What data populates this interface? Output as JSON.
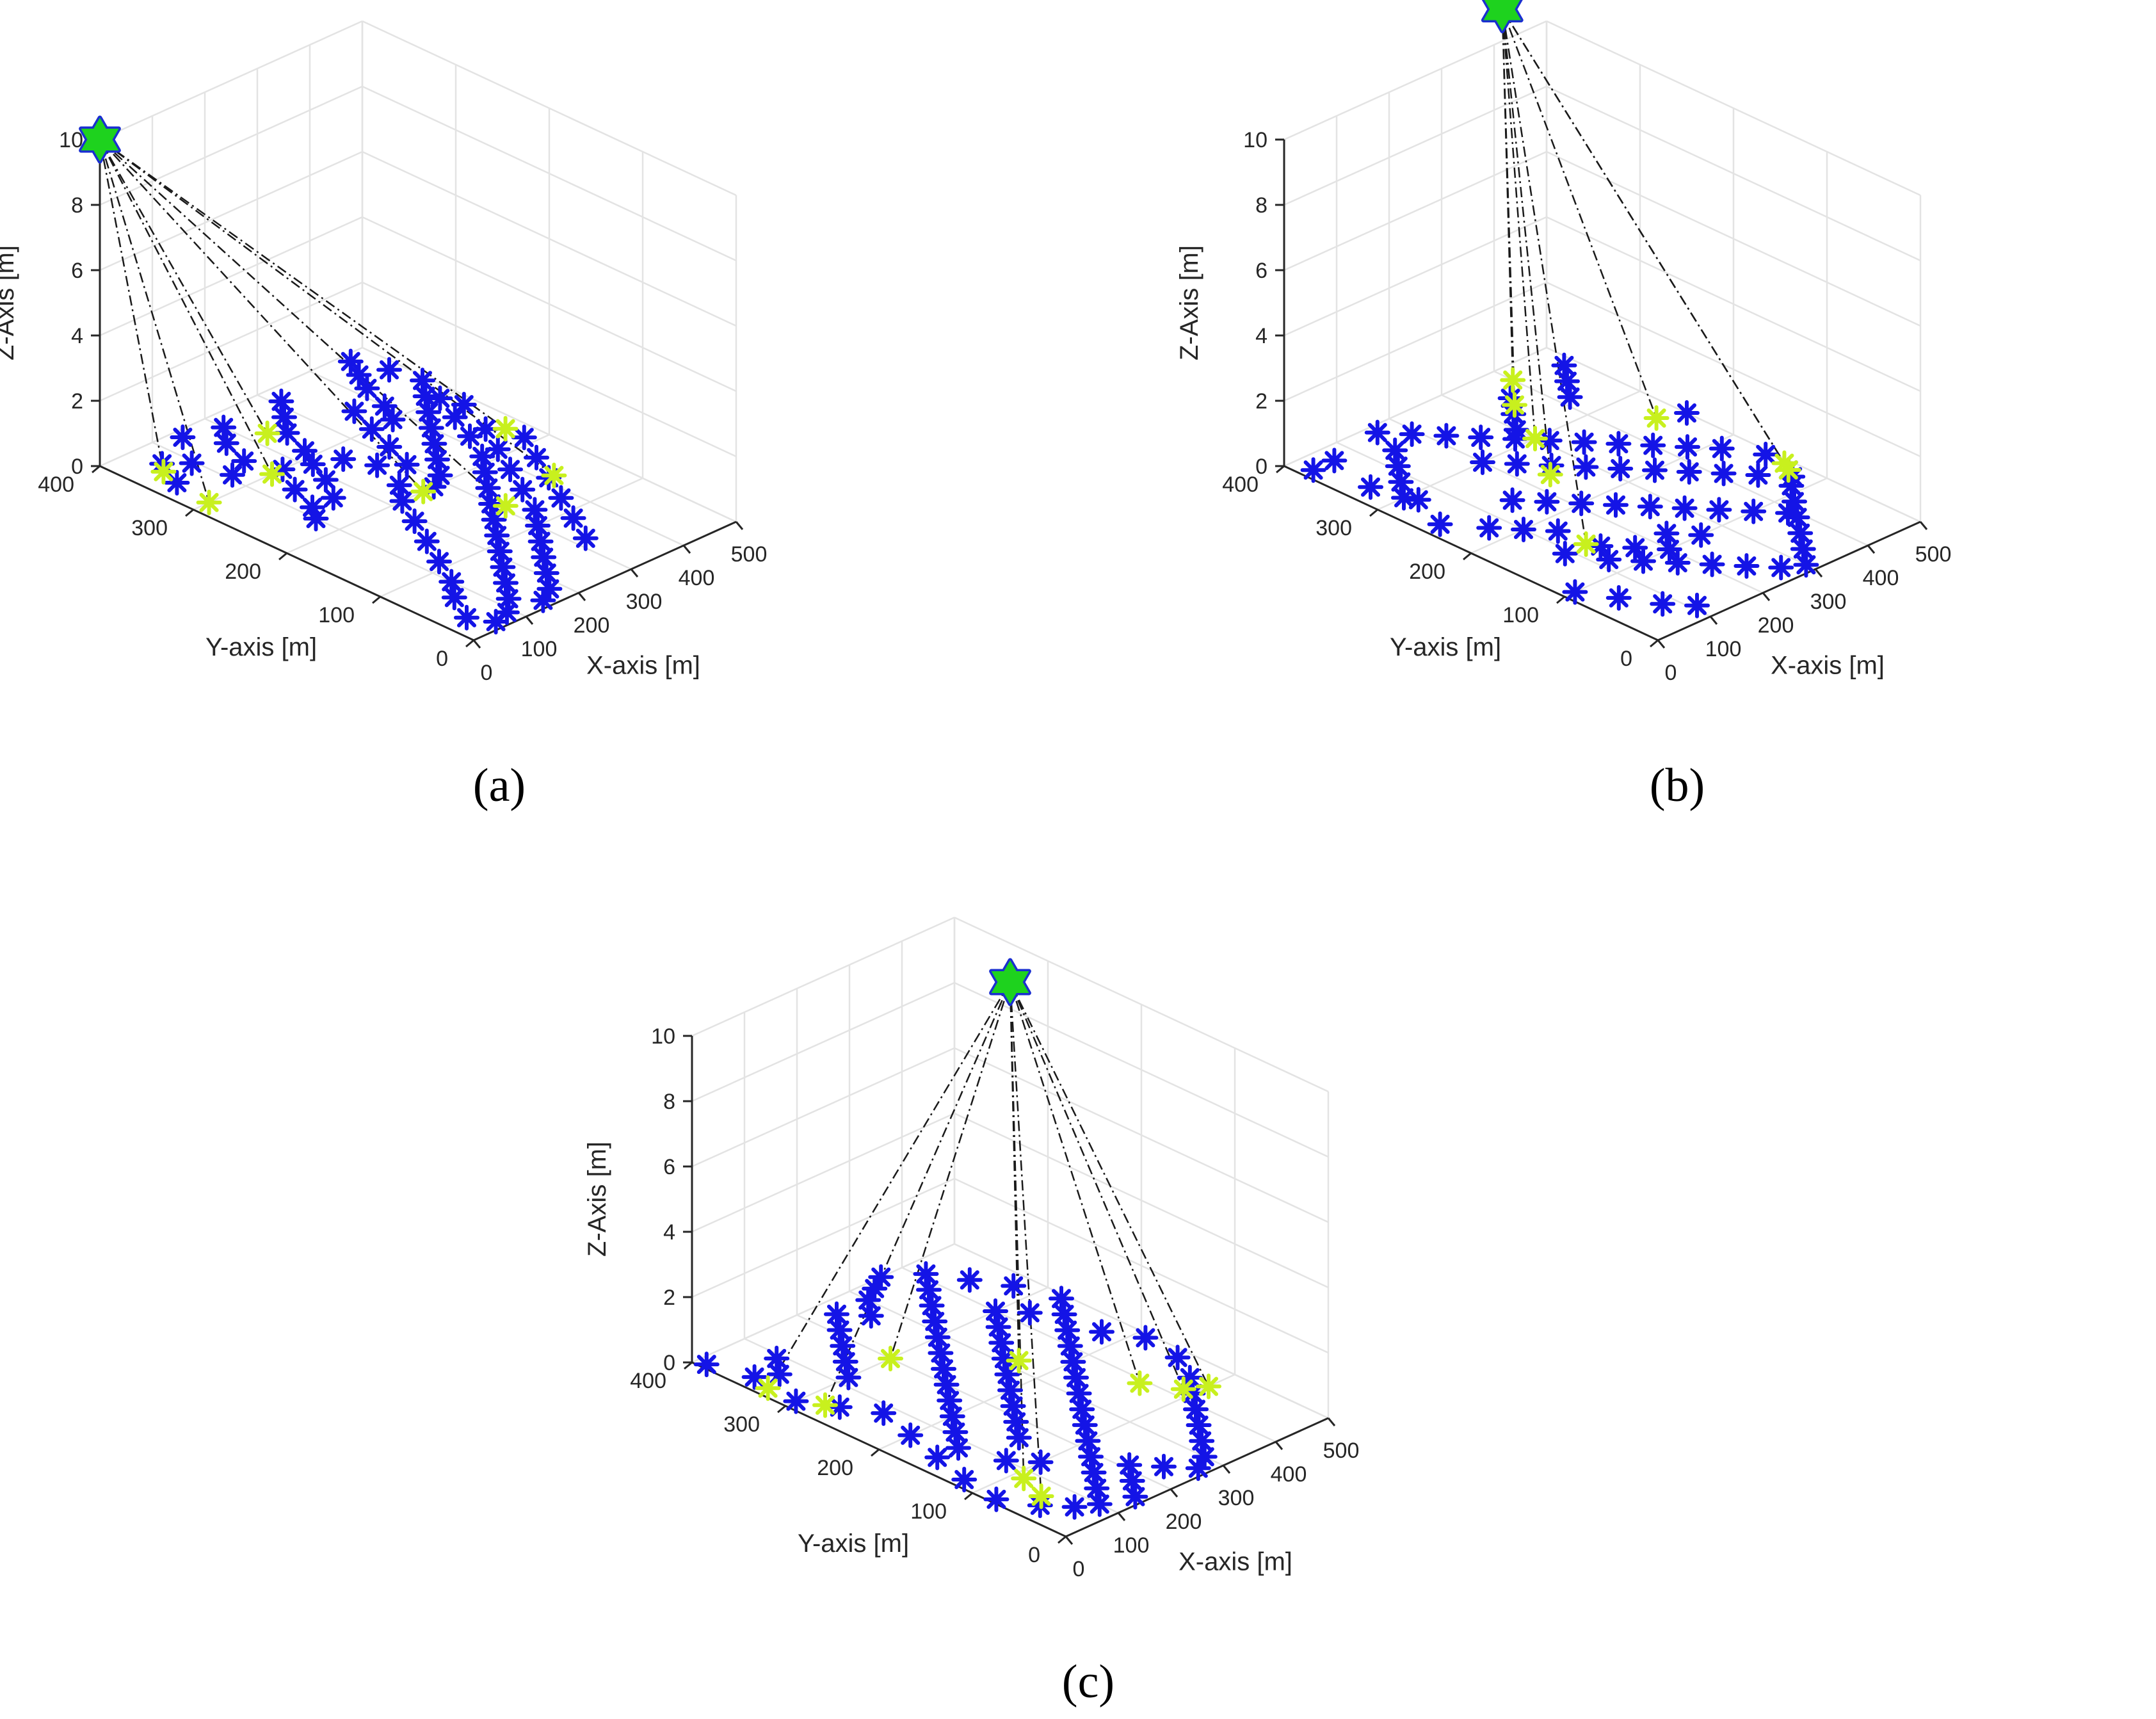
{
  "figure": {
    "captions": [
      "(a)",
      "(b)",
      "(c)"
    ]
  },
  "colors": {
    "sensor": "#1414e6",
    "selected": "#c8f01e",
    "star_fill": "#1ed21e",
    "star_edge": "#1a2fd0",
    "link": "#1a1a1a",
    "grid": "#e3e3e3",
    "axis": "#262626"
  },
  "chart_data": [
    {
      "type": "scatter3d",
      "panel": "a",
      "caption": "(a)",
      "xlabel": "X-axis [m]",
      "ylabel": "Y-axis [m]",
      "zlabel": "Z-Axis [m]",
      "xlim": [
        0,
        500
      ],
      "ylim": [
        0,
        400
      ],
      "zlim": [
        0,
        10
      ],
      "xticks": [
        0,
        100,
        200,
        300,
        400,
        500
      ],
      "yticks": [
        0,
        100,
        200,
        300,
        400
      ],
      "zticks": [
        0,
        2,
        4,
        6,
        8,
        10
      ],
      "grid": true,
      "sink": {
        "x": 0,
        "y": 400,
        "z": 10
      },
      "sensors": [
        [
          40,
          340
        ],
        [
          65,
          370
        ],
        [
          95,
          355
        ],
        [
          110,
          320
        ],
        [
          150,
          330
        ],
        [
          170,
          300
        ],
        [
          140,
          270
        ],
        [
          120,
          240
        ],
        [
          100,
          225
        ],
        [
          160,
          240
        ],
        [
          190,
          265
        ],
        [
          210,
          290
        ],
        [
          230,
          310
        ],
        [
          250,
          280
        ],
        [
          270,
          255
        ],
        [
          300,
          240
        ],
        [
          320,
          270
        ],
        [
          340,
          300
        ],
        [
          360,
          330
        ],
        [
          380,
          300
        ],
        [
          400,
          320
        ],
        [
          420,
          350
        ],
        [
          440,
          370
        ],
        [
          460,
          390
        ],
        [
          480,
          360
        ],
        [
          490,
          330
        ],
        [
          470,
          300
        ],
        [
          445,
          270
        ],
        [
          420,
          240
        ],
        [
          390,
          210
        ],
        [
          360,
          190
        ],
        [
          330,
          170
        ],
        [
          300,
          150
        ],
        [
          270,
          130
        ],
        [
          240,
          110
        ],
        [
          210,
          90
        ],
        [
          180,
          70
        ],
        [
          150,
          50
        ],
        [
          120,
          30
        ],
        [
          90,
          15
        ],
        [
          60,
          10
        ],
        [
          40,
          30
        ],
        [
          70,
          60
        ],
        [
          100,
          80
        ],
        [
          130,
          110
        ],
        [
          160,
          140
        ],
        [
          190,
          170
        ],
        [
          220,
          200
        ],
        [
          250,
          220
        ],
        [
          280,
          200
        ],
        [
          310,
          210
        ],
        [
          340,
          230
        ],
        [
          370,
          250
        ],
        [
          400,
          270
        ],
        [
          430,
          290
        ],
        [
          460,
          310
        ],
        [
          480,
          280
        ],
        [
          450,
          240
        ],
        [
          420,
          210
        ],
        [
          390,
          180
        ],
        [
          360,
          150
        ],
        [
          330,
          120
        ],
        [
          300,
          100
        ],
        [
          270,
          80
        ],
        [
          240,
          60
        ],
        [
          210,
          40
        ],
        [
          180,
          20
        ],
        [
          150,
          10
        ],
        [
          250,
          340
        ],
        [
          280,
          360
        ],
        [
          310,
          380
        ],
        [
          200,
          380
        ],
        [
          170,
          360
        ],
        [
          140,
          390
        ],
        [
          320,
          60
        ],
        [
          350,
          90
        ],
        [
          380,
          120
        ],
        [
          410,
          150
        ],
        [
          440,
          180
        ],
        [
          470,
          210
        ]
      ],
      "selected": [
        [
          50,
          360
        ],
        [
          30,
          300
        ],
        [
          150,
          300
        ],
        [
          230,
          350
        ],
        [
          260,
          200
        ],
        [
          310,
          140
        ],
        [
          420,
          150
        ],
        [
          470,
          230
        ]
      ]
    },
    {
      "type": "scatter3d",
      "panel": "b",
      "caption": "(b)",
      "xlabel": "X-axis [m]",
      "ylabel": "Y-axis [m]",
      "zlabel": "Z-Axis [m]",
      "xlim": [
        0,
        500
      ],
      "ylim": [
        0,
        400
      ],
      "zlim": [
        0,
        10
      ],
      "xticks": [
        0,
        100,
        200,
        300,
        400,
        500
      ],
      "yticks": [
        0,
        100,
        200,
        300,
        400
      ],
      "zticks": [
        0,
        2,
        4,
        6,
        8,
        10
      ],
      "grid": true,
      "sink": {
        "x": 380,
        "y": 380,
        "z": 11.5
      },
      "sensors": [
        [
          20,
          380
        ],
        [
          40,
          330
        ],
        [
          60,
          290
        ],
        [
          30,
          250
        ],
        [
          70,
          220
        ],
        [
          100,
          200
        ],
        [
          130,
          180
        ],
        [
          90,
          150
        ],
        [
          120,
          120
        ],
        [
          150,
          100
        ],
        [
          180,
          80
        ],
        [
          210,
          60
        ],
        [
          240,
          40
        ],
        [
          270,
          20
        ],
        [
          300,
          10
        ],
        [
          330,
          30
        ],
        [
          360,
          50
        ],
        [
          390,
          70
        ],
        [
          420,
          90
        ],
        [
          450,
          110
        ],
        [
          480,
          130
        ],
        [
          490,
          160
        ],
        [
          460,
          190
        ],
        [
          430,
          210
        ],
        [
          400,
          230
        ],
        [
          370,
          250
        ],
        [
          340,
          270
        ],
        [
          310,
          290
        ],
        [
          280,
          310
        ],
        [
          250,
          330
        ],
        [
          220,
          350
        ],
        [
          190,
          370
        ],
        [
          160,
          390
        ],
        [
          140,
          360
        ],
        [
          110,
          340
        ],
        [
          80,
          320
        ],
        [
          50,
          300
        ],
        [
          60,
          380
        ],
        [
          200,
          300
        ],
        [
          230,
          280
        ],
        [
          260,
          260
        ],
        [
          290,
          240
        ],
        [
          320,
          220
        ],
        [
          350,
          200
        ],
        [
          380,
          180
        ],
        [
          410,
          160
        ],
        [
          440,
          140
        ],
        [
          470,
          120
        ],
        [
          150,
          240
        ],
        [
          180,
          220
        ],
        [
          210,
          200
        ],
        [
          240,
          180
        ],
        [
          270,
          160
        ],
        [
          300,
          140
        ],
        [
          330,
          120
        ],
        [
          360,
          100
        ],
        [
          390,
          80
        ],
        [
          300,
          320
        ],
        [
          330,
          340
        ],
        [
          360,
          360
        ],
        [
          420,
          330
        ],
        [
          450,
          350
        ],
        [
          480,
          370
        ],
        [
          500,
          250
        ],
        [
          20,
          100
        ],
        [
          50,
          70
        ],
        [
          80,
          40
        ],
        [
          110,
          20
        ],
        [
          140,
          140
        ],
        [
          170,
          120
        ],
        [
          200,
          100
        ],
        [
          230,
          120
        ],
        [
          260,
          100
        ]
      ],
      "selected": [
        [
          130,
          150
        ],
        [
          240,
          250
        ],
        [
          300,
          300
        ],
        [
          400,
          380
        ],
        [
          460,
          260
        ],
        [
          490,
          140
        ],
        [
          480,
          130
        ],
        [
          350,
          350
        ]
      ]
    },
    {
      "type": "scatter3d",
      "panel": "c",
      "caption": "(c)",
      "xlabel": "X-axis [m]",
      "ylabel": "Y-axis [m]",
      "zlabel": "Z-Axis [m]",
      "xlim": [
        0,
        500
      ],
      "ylim": [
        0,
        400
      ],
      "zlim": [
        0,
        10
      ],
      "xticks": [
        0,
        100,
        200,
        300,
        400,
        500
      ],
      "yticks": [
        0,
        100,
        200,
        300,
        400
      ],
      "zticks": [
        0,
        2,
        4,
        6,
        8,
        10
      ],
      "grid": true,
      "sink": {
        "x": 250,
        "y": 200,
        "z": 12.5
      },
      "sensors": [
        [
          10,
          390
        ],
        [
          30,
          350
        ],
        [
          20,
          300
        ],
        [
          50,
          270
        ],
        [
          80,
          240
        ],
        [
          60,
          200
        ],
        [
          40,
          160
        ],
        [
          20,
          120
        ],
        [
          10,
          80
        ],
        [
          40,
          50
        ],
        [
          70,
          30
        ],
        [
          100,
          20
        ],
        [
          130,
          40
        ],
        [
          160,
          60
        ],
        [
          190,
          80
        ],
        [
          220,
          100
        ],
        [
          250,
          120
        ],
        [
          280,
          140
        ],
        [
          310,
          160
        ],
        [
          340,
          180
        ],
        [
          370,
          200
        ],
        [
          400,
          220
        ],
        [
          430,
          240
        ],
        [
          460,
          260
        ],
        [
          490,
          280
        ],
        [
          470,
          320
        ],
        [
          440,
          350
        ],
        [
          410,
          380
        ],
        [
          380,
          360
        ],
        [
          350,
          340
        ],
        [
          320,
          320
        ],
        [
          290,
          300
        ],
        [
          260,
          280
        ],
        [
          230,
          260
        ],
        [
          200,
          240
        ],
        [
          170,
          220
        ],
        [
          140,
          200
        ],
        [
          110,
          180
        ],
        [
          80,
          160
        ],
        [
          100,
          120
        ],
        [
          130,
          100
        ],
        [
          160,
          140
        ],
        [
          190,
          160
        ],
        [
          220,
          180
        ],
        [
          250,
          200
        ],
        [
          280,
          220
        ],
        [
          310,
          240
        ],
        [
          340,
          260
        ],
        [
          370,
          280
        ],
        [
          400,
          300
        ],
        [
          430,
          280
        ],
        [
          460,
          220
        ],
        [
          490,
          190
        ],
        [
          480,
          150
        ],
        [
          450,
          120
        ],
        [
          420,
          100
        ],
        [
          390,
          80
        ],
        [
          360,
          60
        ],
        [
          330,
          40
        ],
        [
          300,
          20
        ],
        [
          270,
          10
        ],
        [
          240,
          30
        ],
        [
          210,
          50
        ],
        [
          180,
          30
        ],
        [
          150,
          10
        ],
        [
          120,
          300
        ],
        [
          150,
          320
        ],
        [
          180,
          340
        ],
        [
          210,
          360
        ],
        [
          240,
          380
        ],
        [
          270,
          360
        ],
        [
          300,
          380
        ],
        [
          330,
          390
        ],
        [
          360,
          400
        ],
        [
          60,
          340
        ],
        [
          90,
          360
        ]
      ],
      "selected": [
        [
          20,
          330
        ],
        [
          40,
          280
        ],
        [
          200,
          300
        ],
        [
          80,
          90
        ],
        [
          60,
          60
        ],
        [
          320,
          230
        ],
        [
          390,
          140
        ],
        [
          420,
          110
        ],
        [
          450,
          100
        ]
      ]
    }
  ]
}
